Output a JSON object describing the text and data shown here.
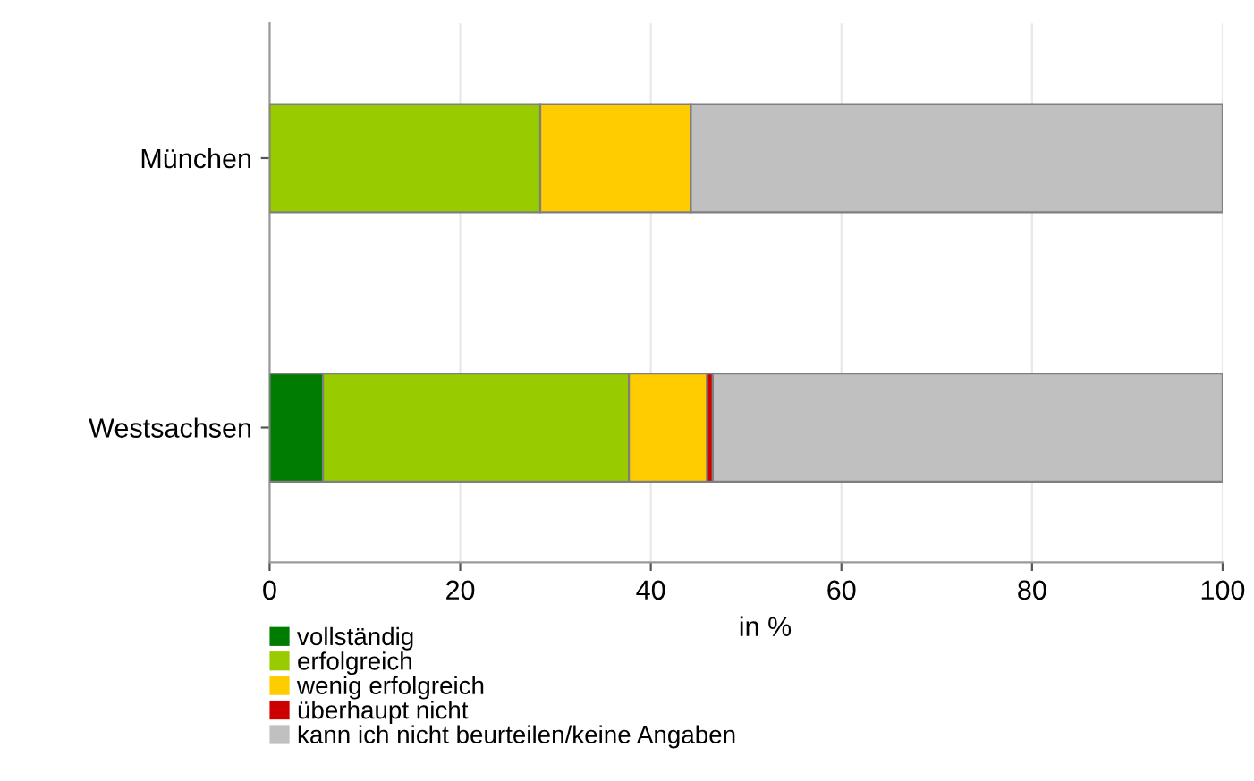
{
  "chart_data": {
    "type": "bar",
    "orientation": "horizontal",
    "stacked": true,
    "xlabel": "in %",
    "categories": [
      "München",
      "Westsachsen"
    ],
    "series": [
      {
        "name": "vollständig",
        "color": "#007d00",
        "values": [
          0,
          5.6
        ]
      },
      {
        "name": "erfolgreich",
        "color": "#99cc00",
        "values": [
          28.4,
          32.1
        ]
      },
      {
        "name": "wenig erfolgreich",
        "color": "#ffcc00",
        "values": [
          15.8,
          8.2
        ]
      },
      {
        "name": "überhaupt nicht",
        "color": "#cc0000",
        "values": [
          0,
          0.6
        ]
      },
      {
        "name": "kann ich nicht beurteilen/keine Angaben",
        "color": "#c0c0c0",
        "values": [
          55.8,
          53.5
        ]
      }
    ],
    "xlim": [
      0,
      100
    ],
    "xticks": [
      0,
      20,
      40,
      60,
      80,
      100
    ],
    "grid": "x",
    "legend": "bottom left"
  }
}
